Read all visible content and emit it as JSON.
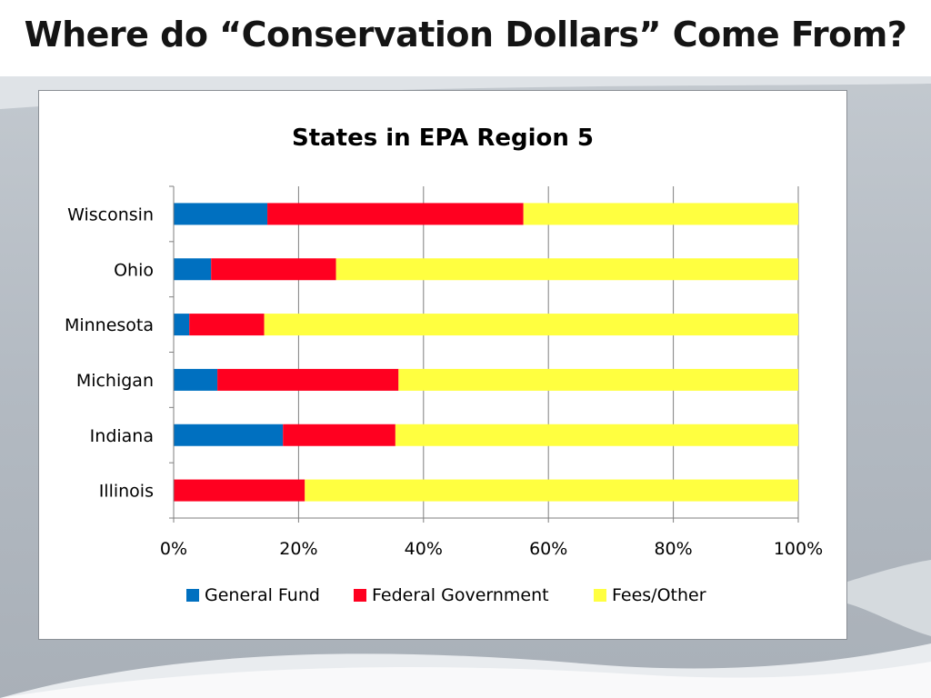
{
  "slide": {
    "title": "Where do “Conservation Dollars” Come From?"
  },
  "chart_data": {
    "type": "bar",
    "orientation": "horizontal",
    "stacked": true,
    "percent_stacked": true,
    "title": "States in EPA Region 5",
    "categories": [
      "Wisconsin",
      "Ohio",
      "Minnesota",
      "Michigan",
      "Indiana",
      "Illinois"
    ],
    "series": [
      {
        "name": "General Fund",
        "color": "#0070C0",
        "values": [
          15,
          6,
          2.5,
          7,
          17.5,
          0
        ]
      },
      {
        "name": "Federal Government",
        "color": "#FF0020",
        "values": [
          41,
          20,
          12,
          29,
          18,
          21
        ]
      },
      {
        "name": "Fees/Other",
        "color": "#FFFF40",
        "values": [
          44,
          74,
          85.5,
          64,
          64.5,
          79
        ]
      }
    ],
    "xlim": [
      0,
      100
    ],
    "xticks": [
      "0%",
      "20%",
      "40%",
      "60%",
      "80%",
      "100%"
    ],
    "grid": true,
    "legend_position": "bottom",
    "xlabel": "",
    "ylabel": ""
  }
}
